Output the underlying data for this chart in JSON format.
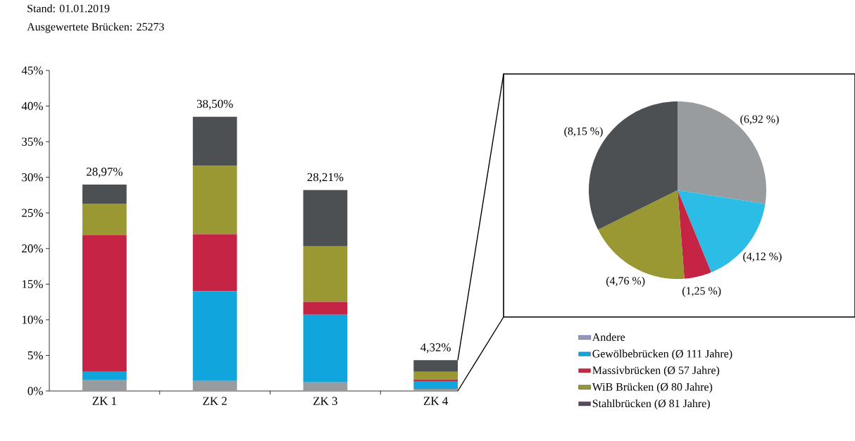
{
  "chart_data": [
    {
      "type": "bar",
      "title": "Stand: 01.01.2019",
      "subtitle": "Ausgewertete Brücken: 25273",
      "categories": [
        "ZK 1",
        "ZK 2",
        "ZK 3",
        "ZK 4"
      ],
      "stacked": true,
      "series": [
        {
          "name": "Andere",
          "color": "#999c9e",
          "values": [
            1.5,
            1.4,
            1.21,
            0.3
          ]
        },
        {
          "name": "Gewölbebrücken (Ø 111 Jahre)",
          "color": "#10a5dc",
          "values": [
            1.2,
            12.6,
            9.5,
            1.0
          ]
        },
        {
          "name": "Massivbrücken (Ø 57 Jahre)",
          "color": "#c52445",
          "values": [
            19.2,
            8.0,
            1.8,
            0.3
          ]
        },
        {
          "name": "WiB Brücken (Ø 80 Jahre)",
          "color": "#9a9833",
          "values": [
            4.4,
            9.6,
            7.8,
            1.1
          ]
        },
        {
          "name": "Stahlbrücken (Ø 81 Jahre)",
          "color": "#4d5053",
          "values": [
            2.67,
            6.9,
            7.9,
            1.62
          ]
        }
      ],
      "totals": [
        "28,97%",
        "38,50%",
        "28,21%",
        "4,32%"
      ],
      "ylim": [
        0,
        45
      ],
      "yticks": [
        {
          "value": 0,
          "label": "0%"
        },
        {
          "value": 5,
          "label": "5%"
        },
        {
          "value": 10,
          "label": "10%"
        },
        {
          "value": 15,
          "label": "15%"
        },
        {
          "value": 20,
          "label": "20%"
        },
        {
          "value": 25,
          "label": "25%"
        },
        {
          "value": 30,
          "label": "30%"
        },
        {
          "value": 35,
          "label": "35%"
        },
        {
          "value": 40,
          "label": "40%"
        },
        {
          "value": 45,
          "label": "45%"
        }
      ],
      "legend": "bottom right",
      "grid": false
    },
    {
      "type": "pie",
      "categories": [
        null,
        null,
        null,
        null,
        null
      ],
      "values": [
        6.92,
        4.12,
        1.25,
        4.76,
        8.15
      ],
      "colors": [
        "#999c9e",
        "#2bbde6",
        "#c52445",
        "#9a9833",
        "#4d5053"
      ],
      "value_labels": [
        "(6,92 %)",
        "(4,12 %)",
        "(1,25 %)",
        "(4,76 %)",
        "(8,15 %)"
      ]
    }
  ]
}
